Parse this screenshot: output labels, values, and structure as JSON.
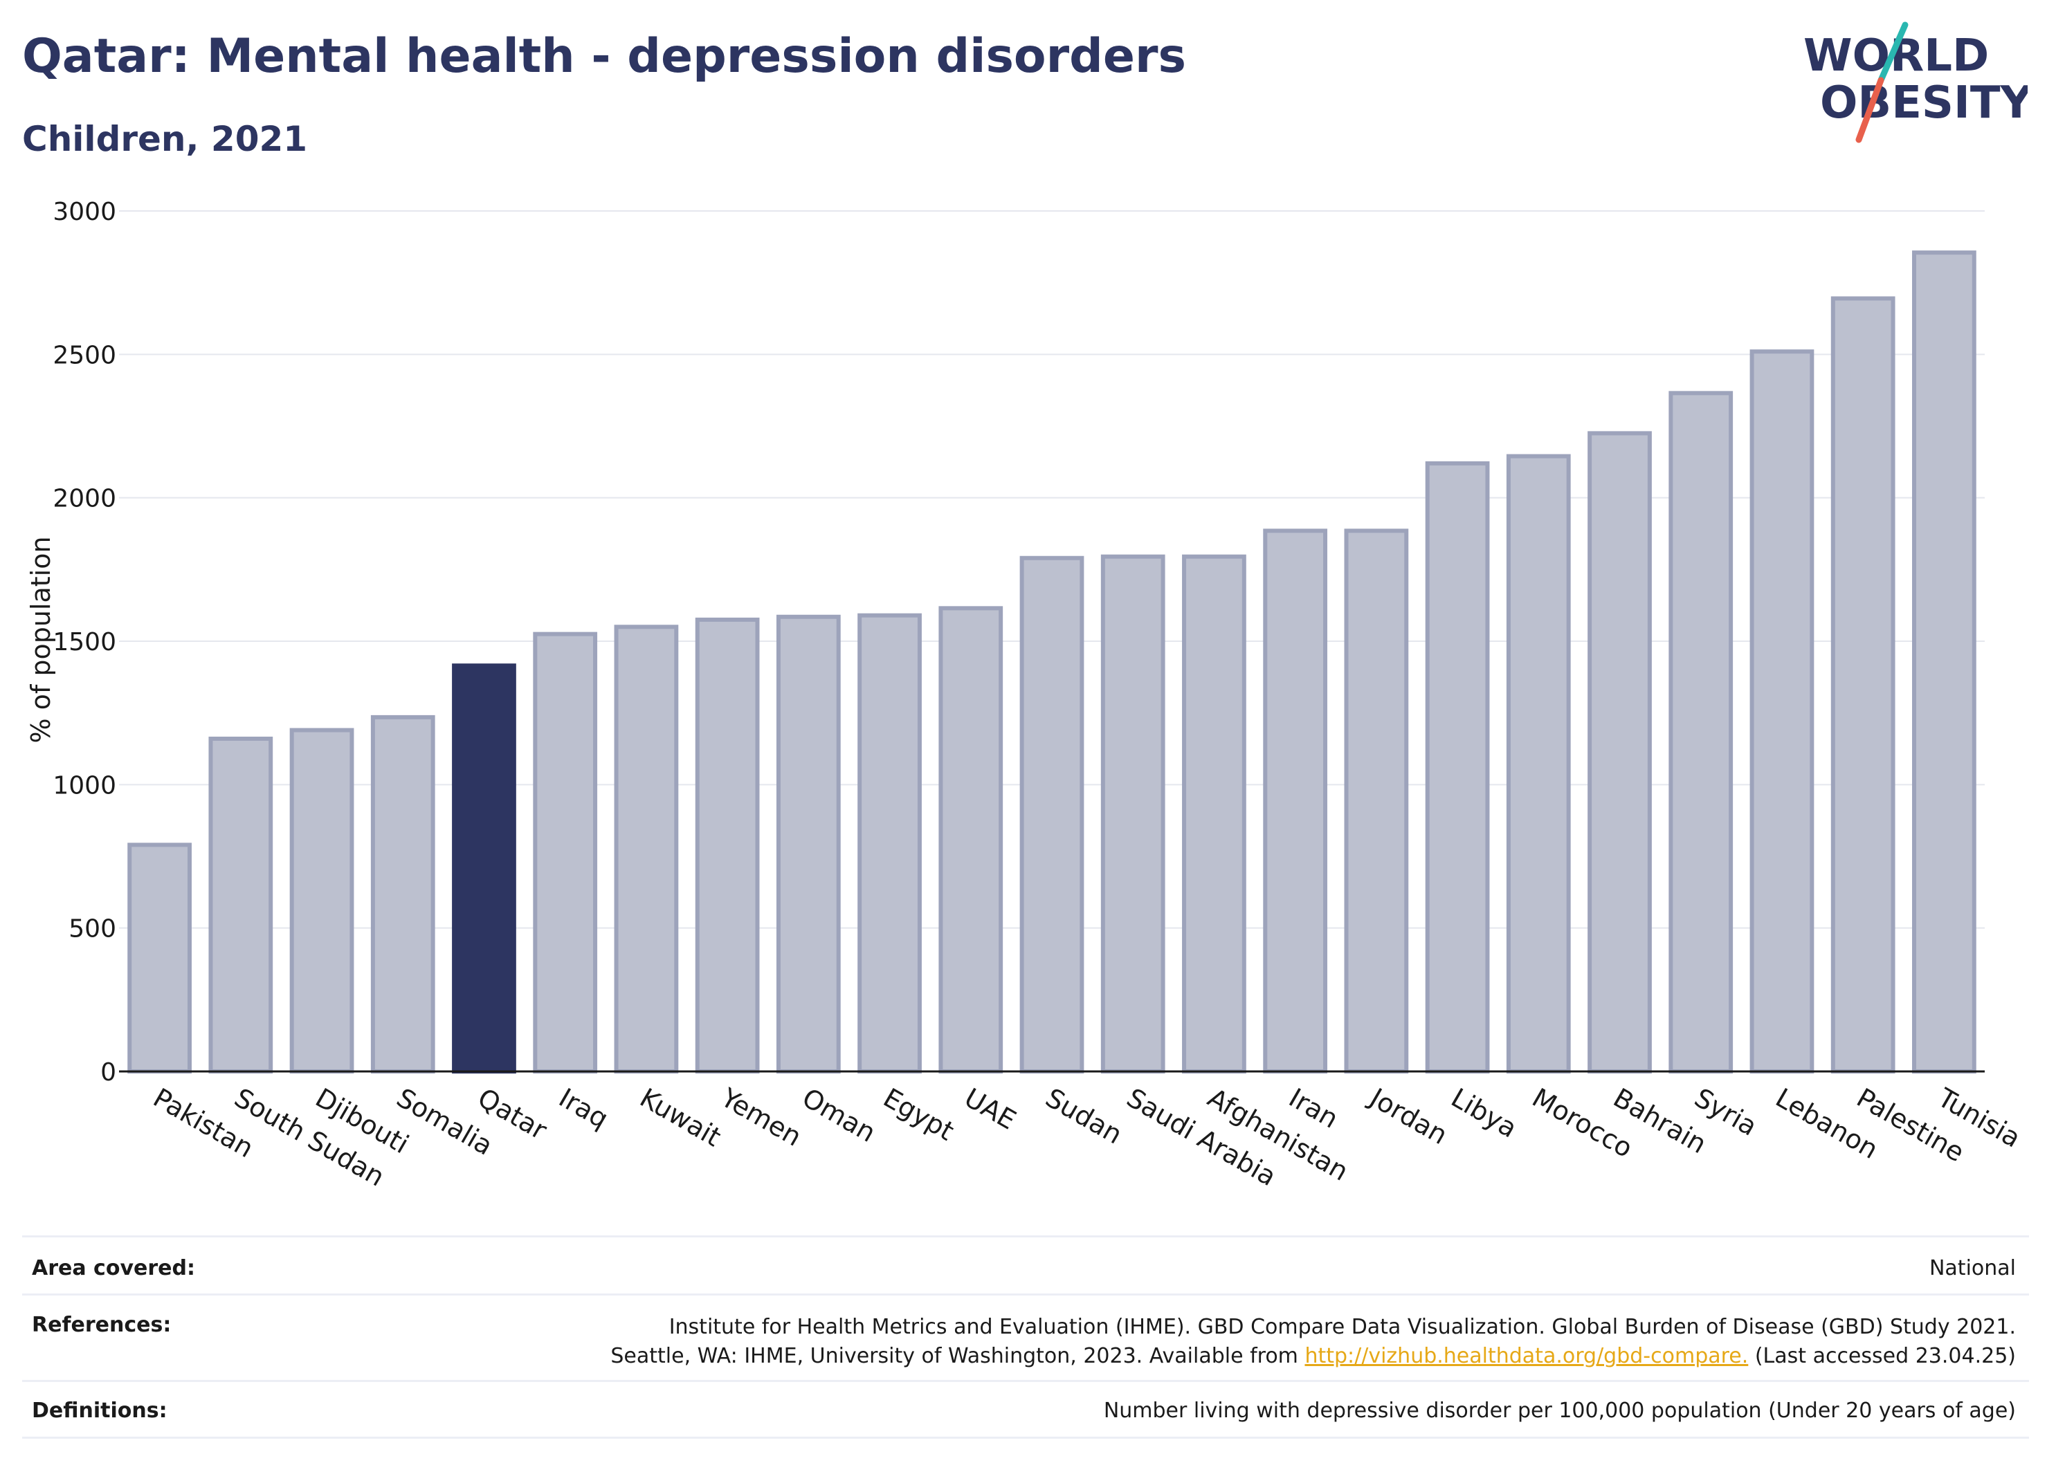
{
  "header": {
    "title": "Qatar: Mental health - depression disorders",
    "subtitle": "Children, 2021"
  },
  "logo": {
    "line1": "WORLD",
    "line2": "OBESITY",
    "accent_teal": "#2ab7b0",
    "accent_coral": "#e8604c"
  },
  "colors": {
    "bar_default": "#bcc0cf",
    "bar_default_stroke": "#9da3bb",
    "bar_highlight": "#2d3561",
    "axis": "#1a1a1a",
    "grid": "#e5e7ee"
  },
  "chart_data": {
    "type": "bar",
    "title": "",
    "xlabel": "",
    "ylabel": "% of population",
    "ylim": [
      0,
      3000
    ],
    "yticks": [
      "0",
      "500",
      "1000",
      "1500",
      "2000",
      "2500",
      "3000"
    ],
    "grid": true,
    "highlight": "Qatar",
    "categories": [
      "Pakistan",
      "South Sudan",
      "Djibouti",
      "Somalia",
      "Qatar",
      "Iraq",
      "Kuwait",
      "Yemen",
      "Oman",
      "Egypt",
      "UAE",
      "Sudan",
      "Saudi Arabia",
      "Afghanistan",
      "Iran",
      "Jordan",
      "Libya",
      "Morocco",
      "Bahrain",
      "Syria",
      "Lebanon",
      "Palestine",
      "Tunisia"
    ],
    "values": [
      790,
      1160,
      1190,
      1235,
      1415,
      1525,
      1550,
      1575,
      1585,
      1590,
      1615,
      1790,
      1795,
      1795,
      1885,
      1885,
      2120,
      2145,
      2225,
      2365,
      2510,
      2695,
      2855
    ]
  },
  "footer": {
    "area_label": "Area covered:",
    "area_value": "National",
    "references_label": "References:",
    "references_line1": "Institute for Health Metrics and Evaluation (IHME). GBD Compare Data Visualization. Global Burden of Disease (GBD) Study 2021.",
    "references_line2_prefix": "Seattle, WA: IHME, University of Washington, 2023. Available from ",
    "references_link": "http://vizhub.healthdata.org/gbd-compare.",
    "references_line2_suffix": " (Last accessed 23.04.25)",
    "definitions_label": "Definitions:",
    "definitions_value": "Number living with depressive disorder per 100,000 population (Under 20 years of age)"
  }
}
